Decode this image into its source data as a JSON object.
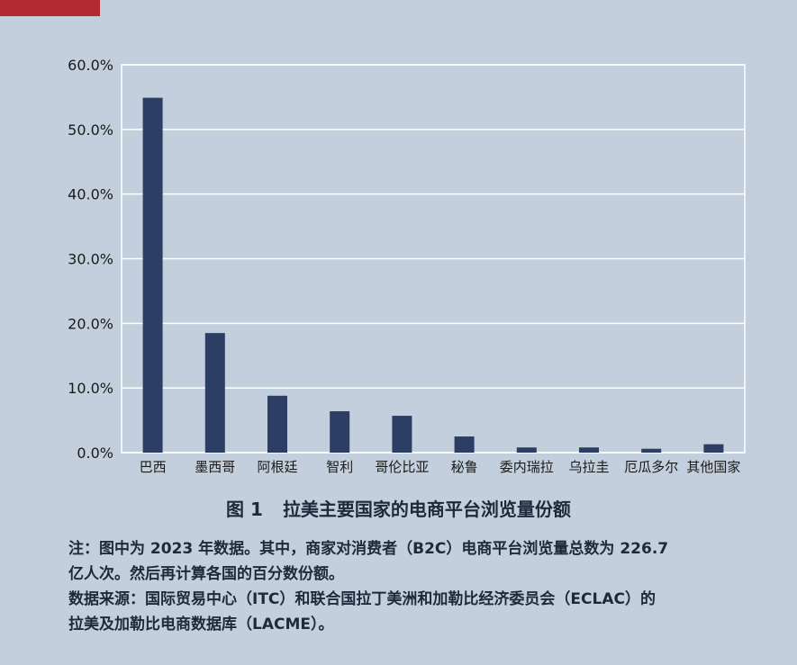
{
  "chart_data": {
    "type": "bar",
    "categories": [
      "巴西",
      "墨西哥",
      "阿根廷",
      "智利",
      "哥伦比亚",
      "秘鲁",
      "委内瑞拉",
      "乌拉圭",
      "厄瓜多尔",
      "其他国家"
    ],
    "values": [
      54.9,
      18.5,
      8.8,
      6.4,
      5.7,
      2.5,
      0.8,
      0.8,
      0.6,
      1.3
    ],
    "ylim": [
      0,
      60
    ],
    "yticks": [
      "0.0%",
      "10.0%",
      "20.0%",
      "30.0%",
      "40.0%",
      "50.0%",
      "60.0%"
    ],
    "grid": true,
    "bar_color": "#2c3e63"
  },
  "figure": {
    "number": "图 1",
    "title": "拉美主要国家的电商平台浏览量份额"
  },
  "notes": {
    "note_line1": "注：图中为 2023 年数据。其中，商家对消费者（B2C）电商平台浏览量总数为 226.7",
    "note_line2": "亿人次。然后再计算各国的百分数份额。",
    "source_line1": "数据来源：国际贸易中心（ITC）和联合国拉丁美洲和加勒比经济委员会（ECLAC）的",
    "source_line2": "拉美及加勒比电商数据库（LACME）。"
  },
  "colors": {
    "background": "#c3cfdc",
    "accent": "#b42a31",
    "text": "#1e2a3a"
  }
}
